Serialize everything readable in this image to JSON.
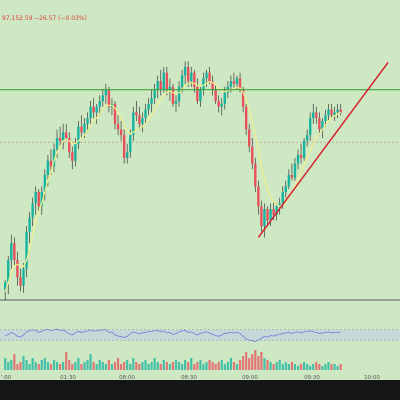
{
  "header": {
    "price_text": "97,152.59",
    "change_text": "−26.57 (−0.03%)"
  },
  "colors": {
    "background": "#cfe8c4",
    "page_frame": "#131517",
    "bull": "#16b3a0",
    "bear": "#e8505b",
    "wick": "#3a3a3a",
    "ma": "#f2f08a",
    "resistance": "#3aa43a",
    "support": "#d7222e",
    "baseline": "#5a5a5a",
    "grid_dashed": "#b99a86",
    "rsi_line": "#6e7fd8",
    "rsi_band": "#bfcfe6",
    "header_text": "#d9413e",
    "axis_text": "#555555"
  },
  "chart_data": {
    "type": "candlestick",
    "x_ticks": [
      "’:00",
      "01:30",
      "08:00",
      "08:30",
      "09:00",
      "09:30",
      "10:00"
    ],
    "ylim": [
      96300,
      97250
    ],
    "candles": [
      [
        96335,
        96370,
        96300,
        96362
      ],
      [
        96362,
        96455,
        96320,
        96440
      ],
      [
        96440,
        96530,
        96410,
        96500
      ],
      [
        96500,
        96520,
        96420,
        96440
      ],
      [
        96440,
        96470,
        96350,
        96380
      ],
      [
        96380,
        96410,
        96330,
        96350
      ],
      [
        96350,
        96430,
        96325,
        96410
      ],
      [
        96410,
        96560,
        96380,
        96540
      ],
      [
        96540,
        96610,
        96500,
        96590
      ],
      [
        96590,
        96660,
        96560,
        96640
      ],
      [
        96640,
        96700,
        96600,
        96680
      ],
      [
        96680,
        96690,
        96610,
        96630
      ],
      [
        96630,
        96700,
        96600,
        96680
      ],
      [
        96680,
        96760,
        96650,
        96740
      ],
      [
        96740,
        96810,
        96700,
        96790
      ],
      [
        96790,
        96830,
        96740,
        96770
      ],
      [
        96770,
        96850,
        96750,
        96830
      ],
      [
        96830,
        96900,
        96800,
        96870
      ],
      [
        96870,
        96910,
        96840,
        96860
      ],
      [
        96860,
        96920,
        96830,
        96890
      ],
      [
        96890,
        96920,
        96860,
        96870
      ],
      [
        96870,
        96890,
        96800,
        96820
      ],
      [
        96820,
        96840,
        96760,
        96790
      ],
      [
        96790,
        96870,
        96770,
        96850
      ],
      [
        96850,
        96930,
        96830,
        96910
      ],
      [
        96910,
        96950,
        96870,
        96890
      ],
      [
        96890,
        96940,
        96870,
        96920
      ],
      [
        96920,
        96960,
        96890,
        96940
      ],
      [
        96940,
        97000,
        96920,
        96980
      ],
      [
        96980,
        97010,
        96940,
        96960
      ],
      [
        96960,
        96990,
        96920,
        96980
      ],
      [
        96980,
        97020,
        96950,
        97000
      ],
      [
        97000,
        97040,
        96980,
        97020
      ],
      [
        97020,
        97060,
        96990,
        97040
      ],
      [
        97040,
        97050,
        96960,
        96980
      ],
      [
        96980,
        97010,
        96950,
        96990
      ],
      [
        96990,
        97000,
        96900,
        96920
      ],
      [
        96920,
        96950,
        96880,
        96900
      ],
      [
        96900,
        96930,
        96860,
        96880
      ],
      [
        96880,
        96900,
        96780,
        96800
      ],
      [
        96800,
        96850,
        96780,
        96820
      ],
      [
        96820,
        96900,
        96800,
        96880
      ],
      [
        96880,
        96980,
        96860,
        96960
      ],
      [
        96960,
        97000,
        96930,
        96950
      ],
      [
        96950,
        96980,
        96900,
        96920
      ],
      [
        96920,
        96960,
        96890,
        96940
      ],
      [
        96940,
        96990,
        96920,
        96970
      ],
      [
        96970,
        97010,
        96950,
        96990
      ],
      [
        96990,
        97040,
        96960,
        97010
      ],
      [
        97010,
        97060,
        96990,
        97040
      ],
      [
        97040,
        97090,
        97010,
        97070
      ],
      [
        97070,
        97110,
        97020,
        97040
      ],
      [
        97040,
        97120,
        97030,
        97100
      ],
      [
        97100,
        97120,
        97020,
        97040
      ],
      [
        97040,
        97080,
        97000,
        97050
      ],
      [
        97050,
        97060,
        96980,
        96990
      ],
      [
        96990,
        97020,
        96960,
        97000
      ],
      [
        97000,
        97070,
        96980,
        97050
      ],
      [
        97050,
        97110,
        97030,
        97090
      ],
      [
        97090,
        97140,
        97060,
        97120
      ],
      [
        97120,
        97140,
        97050,
        97070
      ],
      [
        97070,
        97120,
        97050,
        97100
      ],
      [
        97100,
        97110,
        97030,
        97050
      ],
      [
        97050,
        97080,
        96990,
        97000
      ],
      [
        97000,
        97050,
        96980,
        97040
      ],
      [
        97040,
        97100,
        97020,
        97080
      ],
      [
        97080,
        97110,
        97050,
        97100
      ],
      [
        97100,
        97120,
        97060,
        97070
      ],
      [
        97070,
        97090,
        97020,
        97040
      ],
      [
        97040,
        97060,
        96990,
        97000
      ],
      [
        97000,
        97020,
        96960,
        96980
      ],
      [
        96980,
        97010,
        96950,
        96990
      ],
      [
        96990,
        97050,
        96970,
        97030
      ],
      [
        97030,
        97070,
        97010,
        97050
      ],
      [
        97050,
        97090,
        97030,
        97070
      ],
      [
        97070,
        97100,
        97040,
        97060
      ],
      [
        97060,
        97090,
        97040,
        97080
      ],
      [
        97080,
        97100,
        97030,
        97040
      ],
      [
        97040,
        97050,
        96960,
        96980
      ],
      [
        96980,
        96990,
        96880,
        96900
      ],
      [
        96900,
        96920,
        96820,
        96840
      ],
      [
        96840,
        96870,
        96760,
        96780
      ],
      [
        96780,
        96800,
        96680,
        96700
      ],
      [
        96700,
        96720,
        96600,
        96630
      ],
      [
        96630,
        96650,
        96540,
        96560
      ],
      [
        96560,
        96640,
        96520,
        96620
      ],
      [
        96620,
        96630,
        96560,
        96580
      ],
      [
        96580,
        96640,
        96560,
        96620
      ],
      [
        96620,
        96650,
        96580,
        96600
      ],
      [
        96600,
        96640,
        96580,
        96630
      ],
      [
        96630,
        96660,
        96600,
        96640
      ],
      [
        96640,
        96700,
        96620,
        96680
      ],
      [
        96680,
        96720,
        96660,
        96700
      ],
      [
        96700,
        96760,
        96690,
        96740
      ],
      [
        96740,
        96780,
        96720,
        96730
      ],
      [
        96730,
        96800,
        96720,
        96780
      ],
      [
        96780,
        96830,
        96760,
        96810
      ],
      [
        96810,
        96850,
        96780,
        96800
      ],
      [
        96800,
        96870,
        96790,
        96860
      ],
      [
        96860,
        96900,
        96840,
        96880
      ],
      [
        96880,
        96960,
        96860,
        96940
      ],
      [
        96940,
        96990,
        96920,
        96960
      ],
      [
        96960,
        96980,
        96920,
        96940
      ],
      [
        96940,
        96960,
        96880,
        96900
      ],
      [
        96900,
        96940,
        96870,
        96930
      ],
      [
        96930,
        96970,
        96910,
        96950
      ],
      [
        96950,
        96990,
        96930,
        96970
      ],
      [
        96970,
        96990,
        96940,
        96950
      ],
      [
        96950,
        96980,
        96930,
        96960
      ],
      [
        96960,
        96990,
        96940,
        96970
      ],
      [
        96970,
        96990,
        96950,
        96960
      ]
    ],
    "ma_values": [
      96330,
      96360,
      96400,
      96420,
      96425,
      96420,
      96418,
      96440,
      96480,
      96530,
      96580,
      96610,
      96640,
      96680,
      96720,
      96750,
      96790,
      96820,
      96840,
      96860,
      96865,
      96860,
      96850,
      96850,
      96860,
      96870,
      96880,
      96895,
      96915,
      96930,
      96940,
      96955,
      96970,
      96985,
      96985,
      96985,
      96975,
      96960,
      96940,
      96915,
      96895,
      96885,
      96890,
      96900,
      96905,
      96910,
      96920,
      96935,
      96950,
      96970,
      96990,
      97005,
      97020,
      97030,
      97035,
      97030,
      97025,
      97030,
      97040,
      97055,
      97060,
      97065,
      97062,
      97055,
      97052,
      97055,
      97062,
      97068,
      97065,
      97058,
      97045,
      97035,
      97033,
      97036,
      97040,
      97045,
      97048,
      97045,
      97030,
      97005,
      96970,
      96930,
      96880,
      96825,
      96770,
      96725,
      96690,
      96665,
      96645,
      96635,
      96630,
      96635,
      96645,
      96660,
      96680,
      96700,
      96725,
      96750,
      96775,
      96800,
      96825,
      96850,
      96870,
      96885,
      96900,
      96915,
      96930,
      96940,
      96948,
      96955,
      96960
    ],
    "resistance_level": 97040,
    "baseline_level": 96300,
    "dashed_level": 96855,
    "support_line": {
      "from_index": 83,
      "from_value": 96520,
      "to_index": 112,
      "to_value": 96940
    },
    "rsi_values": [
      48,
      52,
      60,
      55,
      45,
      42,
      50,
      62,
      66,
      70,
      68,
      60,
      64,
      70,
      72,
      66,
      70,
      73,
      68,
      70,
      62,
      55,
      50,
      58,
      64,
      60,
      63,
      66,
      70,
      65,
      66,
      68,
      70,
      71,
      60,
      62,
      50,
      46,
      44,
      40,
      45,
      55,
      62,
      58,
      55,
      58,
      60,
      63,
      64,
      66,
      68,
      62,
      66,
      58,
      60,
      52,
      55,
      62,
      66,
      68,
      60,
      62,
      55,
      50,
      56,
      60,
      62,
      58,
      52,
      48,
      45,
      50,
      56,
      58,
      60,
      58,
      60,
      56,
      45,
      35,
      30,
      28,
      25,
      30,
      38,
      45,
      42,
      48,
      46,
      50,
      52,
      56,
      58,
      60,
      56,
      60,
      62,
      58,
      62,
      64,
      66,
      62,
      60,
      56,
      58,
      60,
      62,
      58,
      60,
      61,
      60
    ],
    "volume_values": [
      6,
      4,
      5,
      8,
      3,
      4,
      7,
      5,
      3,
      6,
      4,
      3,
      5,
      6,
      4,
      3,
      5,
      4,
      3,
      4,
      9,
      5,
      3,
      4,
      6,
      3,
      4,
      5,
      8,
      4,
      3,
      5,
      4,
      3,
      5,
      3,
      4,
      6,
      3,
      4,
      5,
      3,
      6,
      4,
      3,
      4,
      5,
      3,
      4,
      6,
      4,
      3,
      5,
      4,
      3,
      4,
      5,
      4,
      3,
      5,
      4,
      6,
      3,
      4,
      5,
      3,
      4,
      5,
      4,
      3,
      4,
      5,
      3,
      4,
      6,
      4,
      3,
      5,
      7,
      9,
      6,
      8,
      10,
      7,
      9,
      6,
      5,
      4,
      3,
      4,
      5,
      3,
      4,
      3,
      4,
      3,
      2,
      3,
      4,
      3,
      2,
      3,
      4,
      3,
      2,
      3,
      4,
      3,
      3,
      2,
      3
    ]
  }
}
